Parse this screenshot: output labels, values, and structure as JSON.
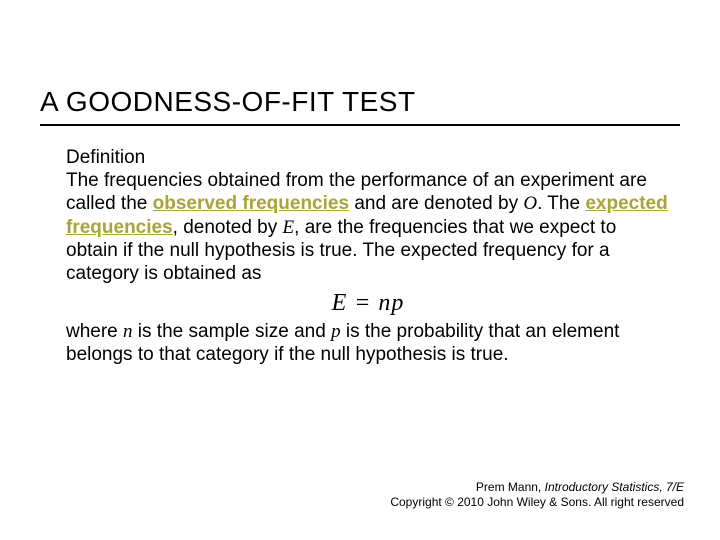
{
  "title": "A GOODNESS-OF-FIT TEST",
  "definition": {
    "heading": "Definition",
    "part1": "The frequencies obtained from the performance of an experiment are called the ",
    "kw1": "observed frequencies",
    "part2": " and are denoted by ",
    "sym_O": "O",
    "part3": ". The ",
    "kw2": "expected frequencies",
    "part4": ", denoted by ",
    "sym_E": "E",
    "part5": ", are the frequencies that we expect to obtain if the null hypothesis is true. The expected frequency for a category is obtained as",
    "formula": "E = np",
    "part6a": "where ",
    "sym_n": "n",
    "part6b": " is the sample size and ",
    "sym_p": "p",
    "part6c": " is the probability that an element belongs to that category if the null hypothesis is true."
  },
  "footer": {
    "author": "Prem Mann, ",
    "book": "Introductory Statistics, 7/E",
    "copyright": "Copyright © 2010 John Wiley & Sons. All right reserved"
  },
  "colors": {
    "keyword": "#a9a33a",
    "text": "#000000",
    "background": "#ffffff",
    "rule": "#000000"
  },
  "typography": {
    "title_fontsize": 28,
    "body_fontsize": 19,
    "formula_fontsize": 24,
    "footer_fontsize": 12,
    "title_family": "Arial",
    "body_family": "Verdana",
    "formula_family": "Times New Roman"
  }
}
